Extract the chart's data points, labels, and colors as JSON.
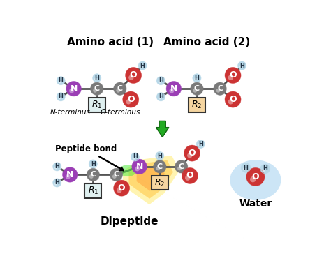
{
  "bg_color": "#ffffff",
  "atom_colors": {
    "N": "#9b3fb5",
    "C": "#7a7a7a",
    "O": "#cc3333",
    "H": "#b8d8e8",
    "R1_bg": "#dff0f0",
    "R2_bg": "#f5d5a0"
  },
  "top_labels": {
    "aa1": "Amino acid (1)",
    "aa2": "Amino acid (2)"
  },
  "bottom_labels": {
    "dipeptide": "Dipeptide",
    "water": "Water",
    "peptide_bond": "Peptide bond",
    "n_terminus": "N-terminus",
    "c_terminus": "C-terminus"
  }
}
